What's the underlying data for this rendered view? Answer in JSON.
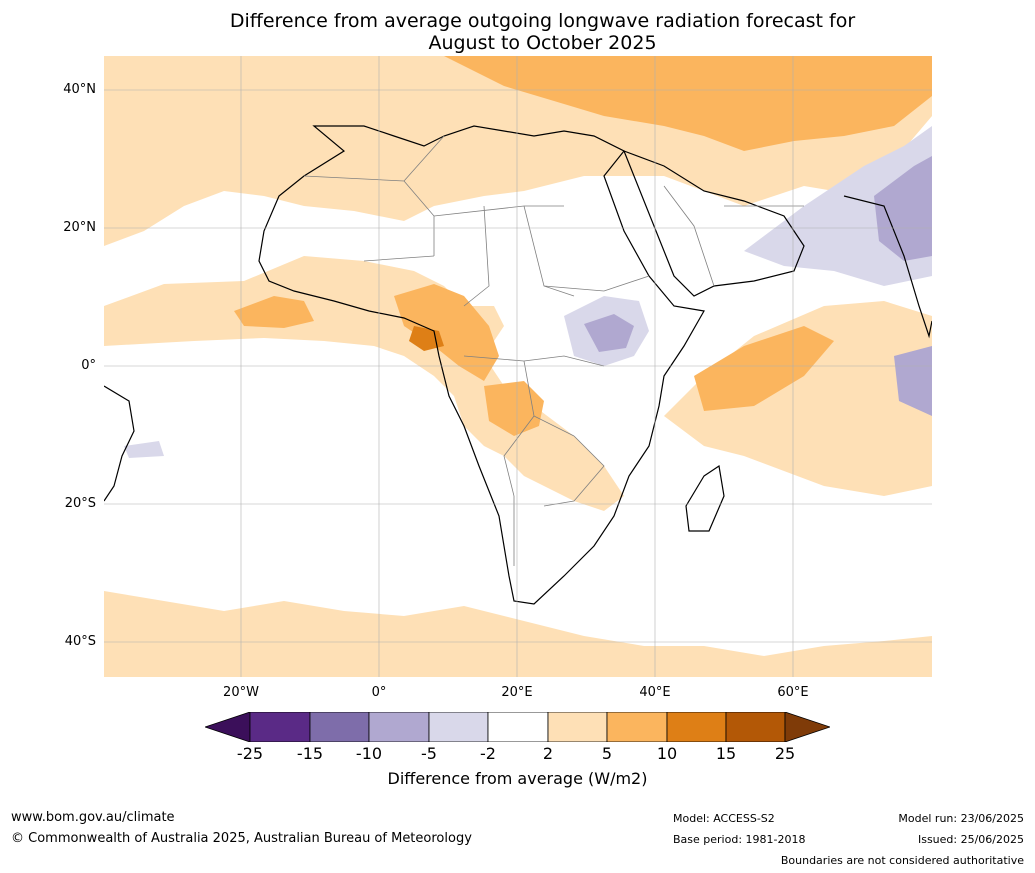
{
  "title_line1": "Difference from average outgoing longwave radiation forecast for",
  "title_line2": "August to October 2025",
  "lat_labels": [
    "40°N",
    "20°N",
    "0°",
    "20°S",
    "40°S"
  ],
  "lon_labels": [
    "20°W",
    "0°",
    "20°E",
    "40°E",
    "60°E"
  ],
  "colorbar": {
    "ticks": [
      "-25",
      "-15",
      "-10",
      "-5",
      "-2",
      "2",
      "5",
      "10",
      "15",
      "25"
    ],
    "colors": [
      "#3b0f5a",
      "#5a2a86",
      "#7e6daa",
      "#b0a8d0",
      "#d9d8ea",
      "#ffffff",
      "#fee0b6",
      "#fbb55e",
      "#de7f16",
      "#b35806",
      "#7f3b08"
    ],
    "label": "Difference from average (W/m2)"
  },
  "footer": {
    "url": "www.bom.gov.au/climate",
    "copyright": "© Commonwealth of Australia 2025, Australian Bureau of Meteorology",
    "model": "Model: ACCESS-S2",
    "base_period": "Base period: 1981-2018",
    "model_run": "Model run: 23/06/2025",
    "issued": "Issued: 25/06/2025",
    "disclaimer": "Boundaries are not considered authoritative"
  }
}
